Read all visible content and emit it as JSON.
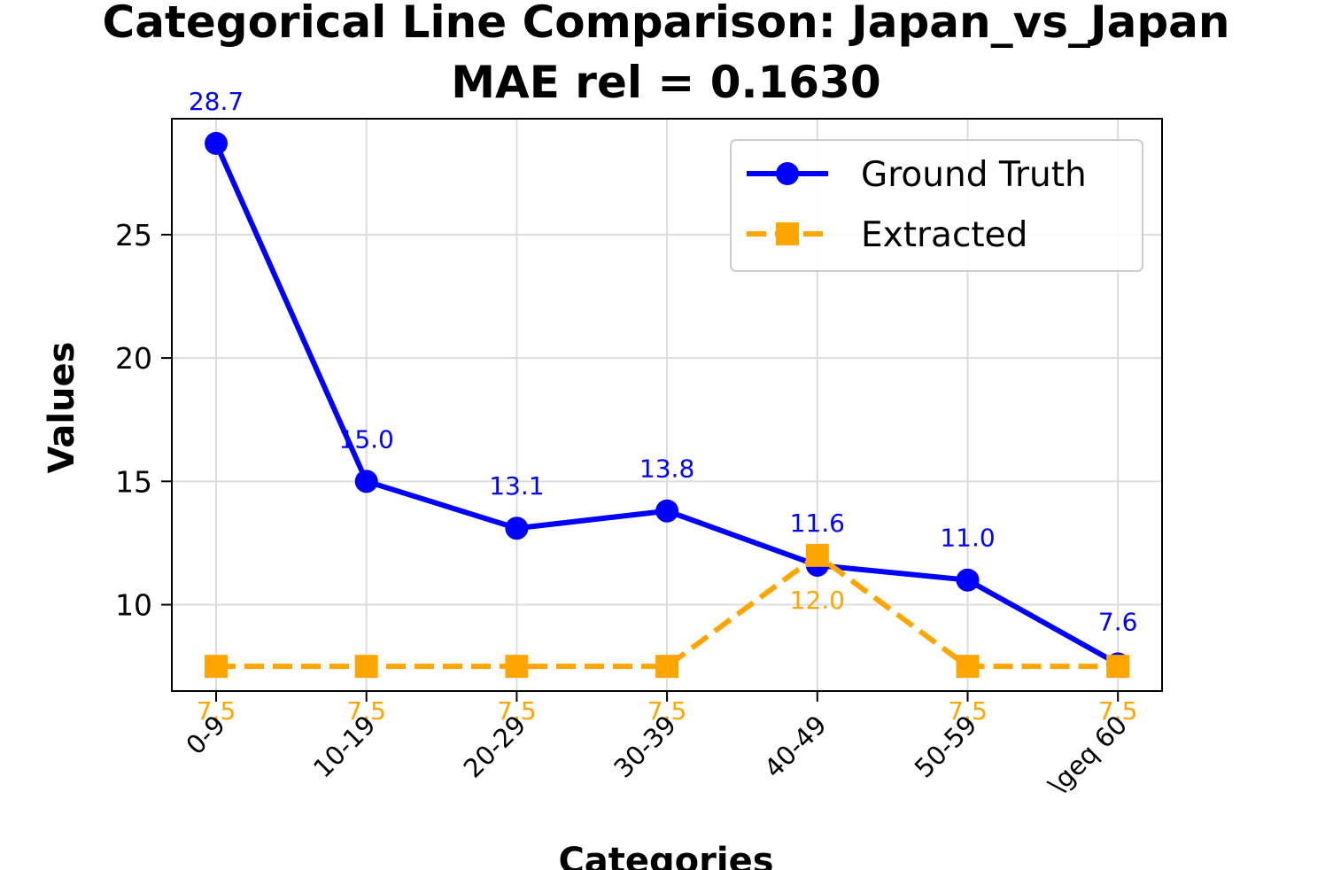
{
  "chart_data": {
    "type": "line",
    "title": "Categorical Line Comparison: Japan_vs_Japan",
    "subtitle": "MAE rel = 0.1630",
    "xlabel": "Categories",
    "ylabel": "Values",
    "categories": [
      "0-9",
      "10-19",
      "20-29",
      "30-39",
      "40-49",
      "50-59",
      "\\geq 60"
    ],
    "yticks": [
      10,
      15,
      20,
      25
    ],
    "ylim": [
      6.5,
      29.7
    ],
    "grid": true,
    "legend_position": "top-right",
    "series": [
      {
        "name": "Ground Truth",
        "color": "#0000ff",
        "marker": "circle",
        "line_style": "solid",
        "values": [
          28.7,
          15.0,
          13.1,
          13.8,
          11.6,
          11.0,
          7.6
        ],
        "labels": [
          "28.7",
          "15.0",
          "13.1",
          "13.8",
          "11.6",
          "11.0",
          "7.6"
        ],
        "label_position": "above"
      },
      {
        "name": "Extracted",
        "color": "#ffa500",
        "marker": "square",
        "line_style": "dashed",
        "values": [
          7.5,
          7.5,
          7.5,
          7.5,
          12.0,
          7.5,
          7.5
        ],
        "labels": [
          "7.5",
          "7.5",
          "7.5",
          "7.5",
          "12.0",
          "7.5",
          "7.5"
        ],
        "label_position": "below"
      }
    ]
  }
}
